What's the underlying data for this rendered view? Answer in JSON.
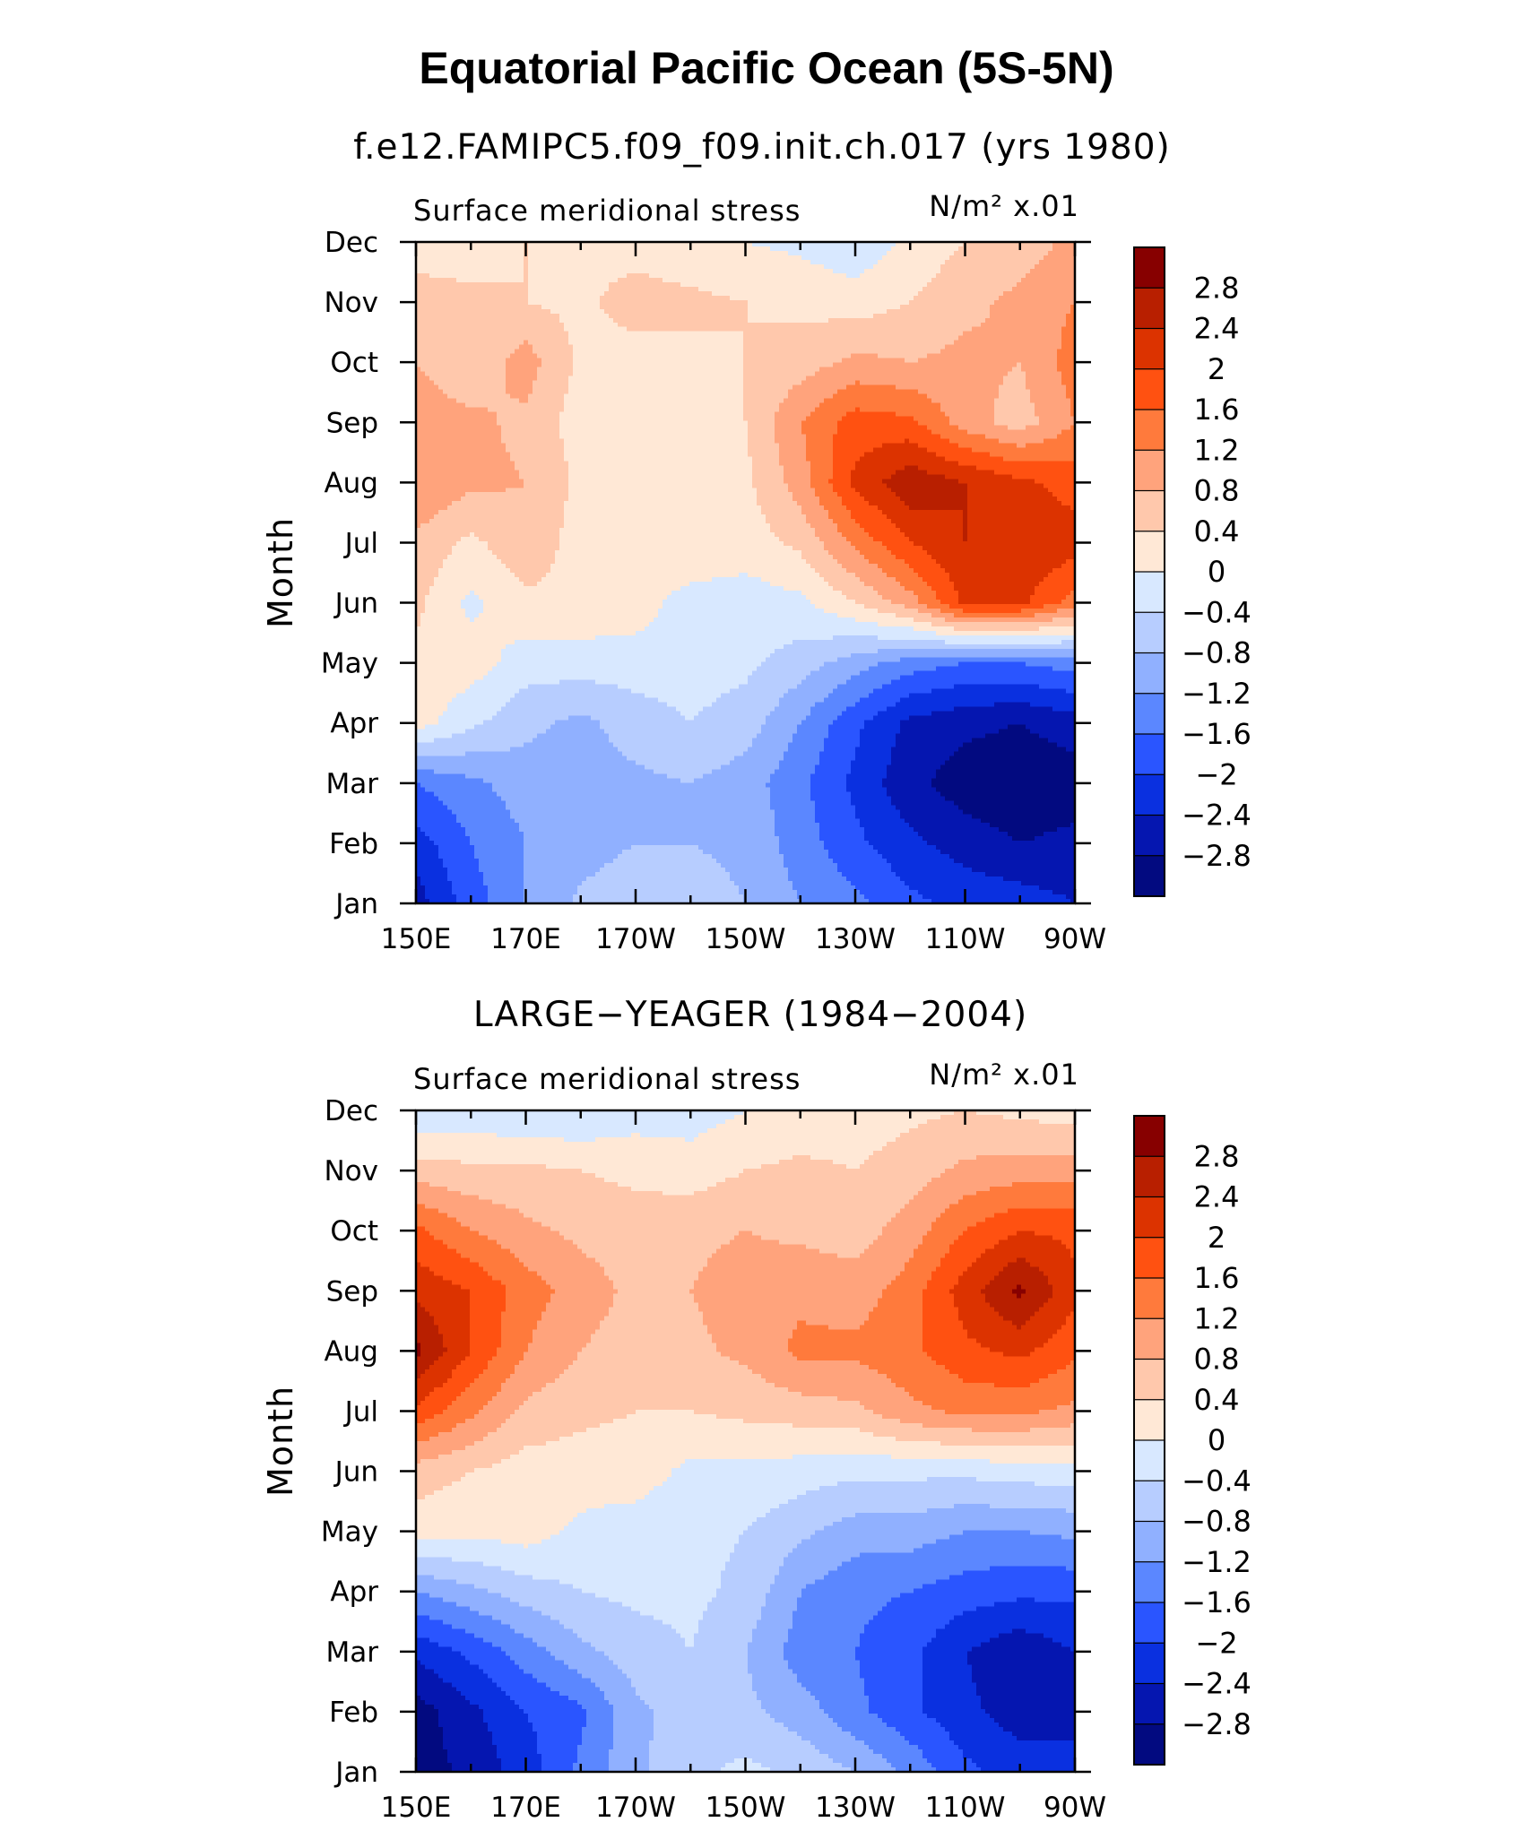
{
  "figure": {
    "title": "Equatorial Pacific Ocean (5S-5N)"
  },
  "colorbar": {
    "labels": [
      "2.8",
      "2.4",
      "2",
      "1.6",
      "1.2",
      "0.8",
      "0.4",
      "0",
      "−0.4",
      "−0.8",
      "−1.2",
      "−1.6",
      "−2",
      "−2.4",
      "−2.8"
    ],
    "levels": [
      2.8,
      2.4,
      2.0,
      1.6,
      1.2,
      0.8,
      0.4,
      0.0,
      -0.4,
      -0.8,
      -1.2,
      -1.6,
      -2.0,
      -2.4,
      -2.8
    ],
    "colors": [
      "#870000",
      "#b81f00",
      "#dc3300",
      "#ff5111",
      "#ff7a3c",
      "#ffa37c",
      "#ffc8ac",
      "#ffe8d6",
      "#d8e8ff",
      "#b7cdff",
      "#90b0ff",
      "#5b87ff",
      "#2a55ff",
      "#0a30e0",
      "#0516b0",
      "#020a80"
    ]
  },
  "chart_data": [
    {
      "type": "heatmap",
      "title": "f.e12.FAMIPC5.f09_f09.init.ch.017 (yrs 1980)",
      "left_label": "Surface meridional stress",
      "right_label": "N/m² x.01",
      "xlabel": "",
      "ylabel": "Month",
      "x_tick_labels": [
        "150E",
        "170E",
        "170W",
        "150W",
        "130W",
        "110W",
        "90W"
      ],
      "y_tick_labels": [
        "Jan",
        "Feb",
        "Mar",
        "Apr",
        "May",
        "Jun",
        "Jul",
        "Aug",
        "Sep",
        "Oct",
        "Nov",
        "Dec"
      ],
      "xlim": [
        150,
        270
      ],
      "ylim": [
        1,
        12
      ],
      "x": [
        150,
        160,
        170,
        180,
        190,
        200,
        210,
        220,
        230,
        240,
        250,
        260,
        270
      ],
      "y": [
        1,
        2,
        3,
        4,
        5,
        6,
        7,
        8,
        9,
        10,
        11,
        12
      ],
      "z": [
        [
          -2.6,
          -1.8,
          -1.2,
          -0.7,
          -0.5,
          -0.6,
          -0.8,
          -1.2,
          -1.5,
          -1.9,
          -2.1,
          -2.2,
          -2.4
        ],
        [
          -2.2,
          -1.6,
          -1.2,
          -1.0,
          -0.8,
          -0.8,
          -0.9,
          -1.4,
          -1.9,
          -2.3,
          -2.6,
          -2.8,
          -2.7
        ],
        [
          -1.6,
          -1.3,
          -1.0,
          -1.0,
          -0.9,
          -0.8,
          -1.0,
          -1.5,
          -2.1,
          -2.7,
          -3.0,
          -3.1,
          -3.0
        ],
        [
          0.2,
          -0.3,
          -0.7,
          -0.9,
          -0.6,
          -0.4,
          -0.6,
          -1.2,
          -1.9,
          -2.5,
          -2.7,
          -2.8,
          -2.6
        ],
        [
          0.3,
          0.2,
          -0.2,
          -0.2,
          -0.2,
          -0.2,
          -0.3,
          -0.6,
          -1.0,
          -1.4,
          -1.6,
          -1.6,
          -1.4
        ],
        [
          0.5,
          -0.1,
          0.3,
          0.3,
          0.2,
          -0.2,
          -0.2,
          -0.1,
          0.4,
          1.0,
          2.1,
          2.1,
          1.4
        ],
        [
          0.7,
          0.3,
          0.7,
          0.2,
          0.3,
          0.4,
          0.2,
          0.5,
          1.3,
          2.0,
          2.4,
          2.4,
          2.2
        ],
        [
          1.2,
          0.9,
          0.8,
          0.3,
          0.2,
          0.3,
          0.3,
          1.0,
          2.1,
          2.7,
          2.4,
          2.1,
          1.8
        ],
        [
          1.0,
          0.9,
          0.7,
          0.2,
          0.3,
          0.4,
          0.4,
          1.2,
          1.8,
          1.7,
          1.0,
          0.6,
          1.2
        ],
        [
          0.8,
          0.5,
          1.0,
          0.3,
          0.2,
          0.3,
          0.4,
          0.6,
          0.9,
          0.8,
          0.9,
          0.8,
          1.4
        ],
        [
          0.5,
          0.5,
          0.4,
          0.3,
          0.6,
          0.5,
          0.4,
          0.3,
          0.2,
          0.4,
          0.7,
          0.9,
          1.2
        ],
        [
          0.3,
          0.2,
          0.4,
          0.3,
          0.2,
          0.1,
          0.0,
          -0.1,
          -0.3,
          0.1,
          0.4,
          0.6,
          0.9
        ]
      ]
    },
    {
      "type": "heatmap",
      "title": "LARGE−YEAGER (1984−2004)",
      "left_label": "Surface meridional stress",
      "right_label": "N/m² x.01",
      "xlabel": "",
      "ylabel": "Month",
      "x_tick_labels": [
        "150E",
        "170E",
        "170W",
        "150W",
        "130W",
        "110W",
        "90W"
      ],
      "y_tick_labels": [
        "Jan",
        "Feb",
        "Mar",
        "Apr",
        "May",
        "Jun",
        "Jul",
        "Aug",
        "Sep",
        "Oct",
        "Nov",
        "Dec"
      ],
      "xlim": [
        150,
        270
      ],
      "ylim": [
        1,
        12
      ],
      "x": [
        150,
        160,
        170,
        180,
        190,
        200,
        210,
        220,
        230,
        240,
        250,
        260,
        270
      ],
      "y": [
        1,
        2,
        3,
        4,
        5,
        6,
        7,
        8,
        9,
        10,
        11,
        12
      ],
      "z": [
        [
          -3.0,
          -2.7,
          -2.2,
          -1.5,
          -0.9,
          -0.5,
          -0.3,
          -0.5,
          -0.8,
          -1.3,
          -1.9,
          -2.2,
          -2.3
        ],
        [
          -3.0,
          -2.5,
          -2.0,
          -1.7,
          -0.9,
          -0.6,
          -0.7,
          -1.0,
          -1.5,
          -1.9,
          -2.3,
          -2.6,
          -2.5
        ],
        [
          -2.3,
          -1.9,
          -1.4,
          -0.9,
          -0.6,
          -0.4,
          -0.8,
          -1.4,
          -1.6,
          -1.9,
          -2.4,
          -2.7,
          -2.4
        ],
        [
          -1.2,
          -0.9,
          -0.6,
          -0.4,
          -0.3,
          -0.3,
          -0.5,
          -1.2,
          -1.5,
          -1.6,
          -1.8,
          -1.9,
          -1.9
        ],
        [
          0.2,
          0.1,
          0.2,
          -0.1,
          -0.2,
          -0.3,
          -0.4,
          -0.7,
          -1.0,
          -1.0,
          -1.2,
          -1.2,
          -1.1
        ],
        [
          0.6,
          0.4,
          0.2,
          0.2,
          0.2,
          -0.1,
          -0.1,
          -0.2,
          -0.3,
          -0.3,
          -0.3,
          -0.2,
          -0.2
        ],
        [
          1.9,
          1.3,
          0.7,
          0.5,
          0.4,
          0.4,
          0.5,
          0.6,
          0.7,
          1.1,
          1.3,
          1.3,
          1.1
        ],
        [
          2.9,
          2.0,
          1.2,
          0.8,
          0.6,
          0.7,
          0.9,
          1.3,
          1.3,
          1.5,
          1.9,
          2.1,
          1.7
        ],
        [
          2.3,
          2.0,
          1.4,
          1.0,
          0.7,
          0.8,
          1.0,
          1.1,
          1.0,
          1.4,
          2.2,
          2.9,
          2.1
        ],
        [
          1.7,
          1.2,
          0.9,
          0.7,
          0.6,
          0.7,
          0.8,
          0.7,
          0.6,
          1.0,
          1.6,
          2.0,
          1.9
        ],
        [
          0.6,
          0.5,
          0.5,
          0.4,
          0.3,
          0.2,
          0.4,
          0.5,
          0.4,
          0.6,
          0.9,
          1.0,
          1.0
        ],
        [
          -0.3,
          -0.3,
          -0.4,
          -0.4,
          -0.2,
          -0.2,
          0.0,
          0.1,
          0.2,
          0.3,
          0.4,
          0.3,
          0.2
        ]
      ]
    }
  ]
}
